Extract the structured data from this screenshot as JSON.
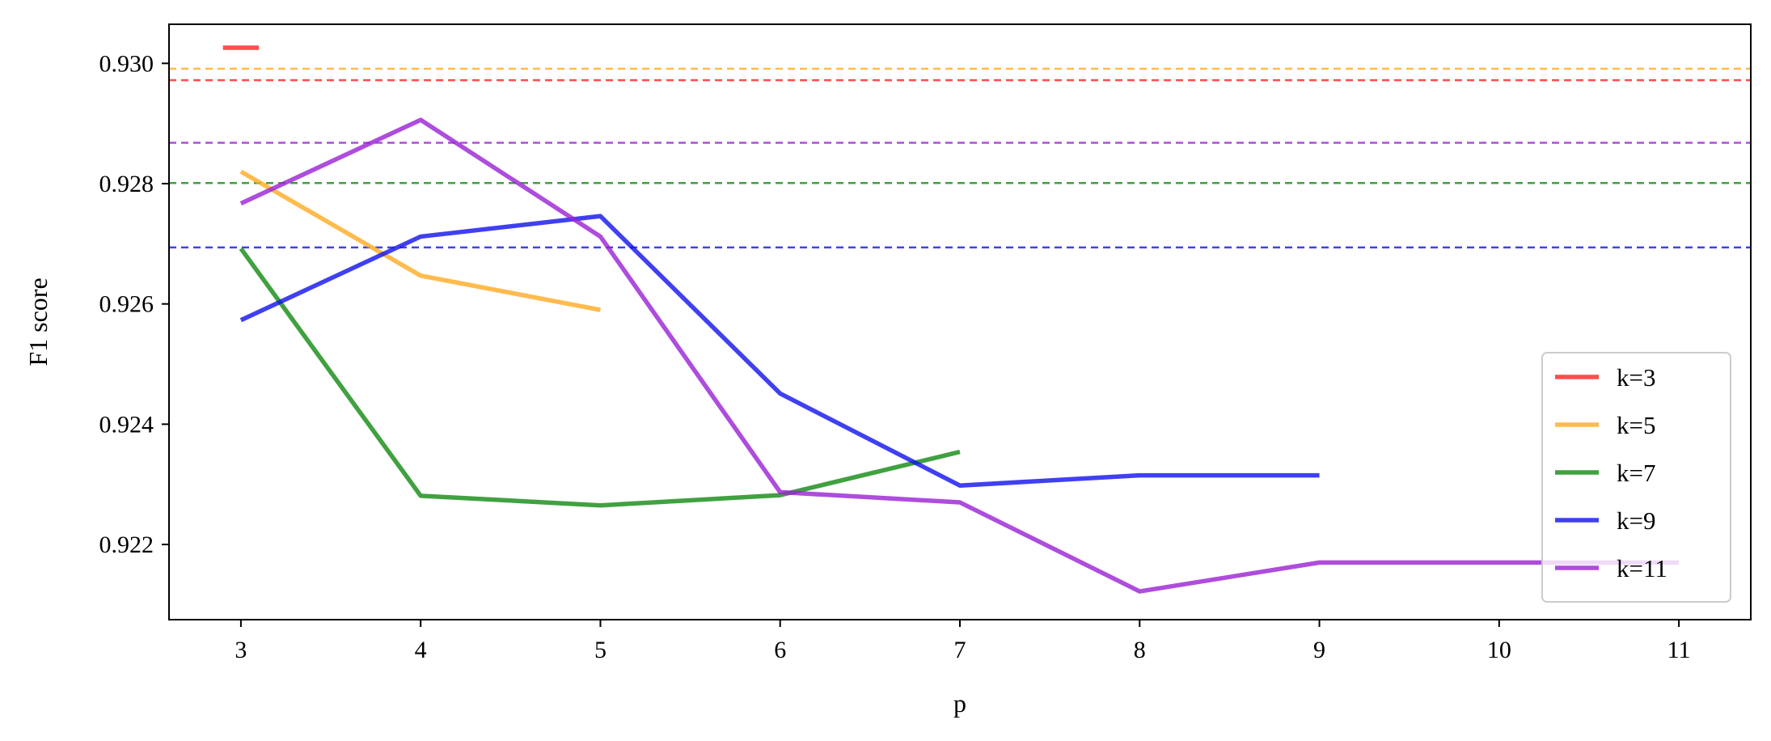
{
  "chart_data": {
    "type": "line",
    "title": "",
    "xlabel": "p",
    "ylabel": "F1 score",
    "xlim": [
      2.6,
      11.4
    ],
    "ylim": [
      0.92075,
      0.93065
    ],
    "x_ticks": [
      3,
      4,
      5,
      6,
      7,
      8,
      9,
      10,
      11
    ],
    "y_ticks": [
      0.922,
      0.924,
      0.926,
      0.928,
      0.93
    ],
    "y_tick_labels": [
      "0.922",
      "0.924",
      "0.926",
      "0.928",
      "0.930"
    ],
    "grid": false,
    "legend_position": "lower-right",
    "series": [
      {
        "name": "k=3",
        "color": "#ff2020",
        "x": [
          2.9,
          3.1
        ],
        "y": [
          0.93026,
          0.93026
        ],
        "baseline": 0.92972
      },
      {
        "name": "k=5",
        "color": "#ffaa20",
        "x": [
          3,
          4,
          5
        ],
        "y": [
          0.9282,
          0.92647,
          0.9259
        ],
        "baseline": 0.92991
      },
      {
        "name": "k=7",
        "color": "#108a10",
        "x": [
          3,
          4,
          5,
          6,
          7
        ],
        "y": [
          0.92692,
          0.92281,
          0.92265,
          0.92282,
          0.92354
        ],
        "baseline": 0.92801
      },
      {
        "name": "k=9",
        "color": "#1010ee",
        "x": [
          3,
          4,
          5,
          6,
          7,
          8,
          9
        ],
        "y": [
          0.92573,
          0.92712,
          0.92746,
          0.92451,
          0.92298,
          0.92315,
          0.92315
        ],
        "baseline": 0.92694
      },
      {
        "name": "k=11",
        "color": "#9a20d4",
        "x": [
          3,
          4,
          5,
          6,
          7,
          8,
          9,
          10,
          11
        ],
        "y": [
          0.92767,
          0.92906,
          0.92712,
          0.92287,
          0.9227,
          0.92122,
          0.9217,
          0.9217,
          0.9217
        ],
        "baseline": 0.92868
      }
    ]
  }
}
